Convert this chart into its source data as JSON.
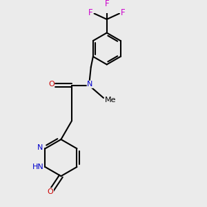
{
  "background_color": "#ebebeb",
  "colors": {
    "N": "#0000cc",
    "O": "#cc0000",
    "F": "#cc00cc",
    "bond": "#000000"
  },
  "figsize": [
    3.0,
    3.0
  ],
  "dpi": 100
}
